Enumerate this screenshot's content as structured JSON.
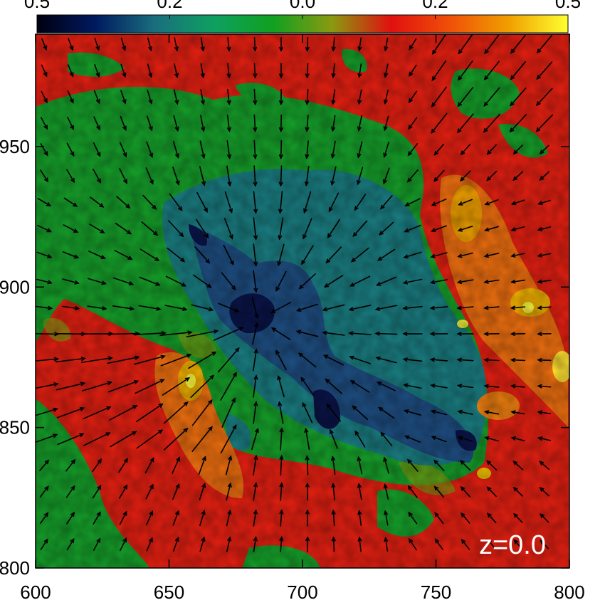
{
  "chart_data": {
    "type": "heatmap",
    "title": "",
    "xlabel": "",
    "ylabel": "",
    "xlim": [
      600,
      800
    ],
    "ylim": [
      800,
      990
    ],
    "x_ticks": [
      "600",
      "650",
      "700",
      "750",
      "800"
    ],
    "x_tick_values": [
      600,
      650,
      700,
      750,
      800
    ],
    "y_ticks": [
      "800",
      "850",
      "900",
      "950"
    ],
    "y_tick_values": [
      800,
      850,
      900,
      950
    ],
    "colorbar": {
      "ticks": [
        "0.5",
        "0.2",
        "0.0",
        "0.2",
        "0.5"
      ],
      "tick_positions": [
        0.0,
        0.25,
        0.5,
        0.75,
        1.0
      ],
      "colors": [
        "#000010",
        "#001a60",
        "#1a6e7e",
        "#0ea060",
        "#10a020",
        "#8a9a10",
        "#e01010",
        "#f05008",
        "#f0a000",
        "#ffff30"
      ],
      "location": "top"
    },
    "overlay": "velocity vectors (arrows)",
    "annotation": "z=0.0",
    "grid": false
  }
}
